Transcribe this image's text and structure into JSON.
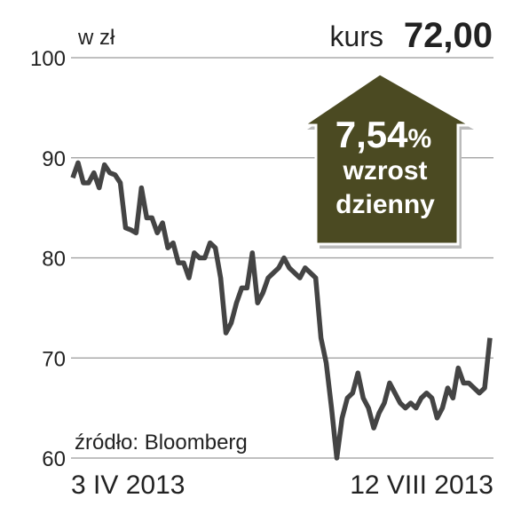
{
  "chart_data": {
    "type": "line",
    "unit_label": "w zł",
    "price_label": "kurs",
    "price_value": "72,00",
    "badge": {
      "value": "7,54",
      "unit": "%",
      "line1": "wzrost",
      "line2": "dzienny"
    },
    "source": "źródło: Bloomberg",
    "categories": [
      "3 IV 2013",
      null,
      null,
      null,
      null,
      null,
      null,
      null,
      null,
      null,
      null,
      null,
      null,
      null,
      null,
      null,
      null,
      null,
      null,
      null,
      null,
      null,
      null,
      null,
      null,
      null,
      null,
      null,
      null,
      null,
      null,
      null,
      null,
      null,
      null,
      null,
      null,
      null,
      null,
      null,
      null,
      null,
      null,
      null,
      null,
      null,
      null,
      null,
      null,
      null,
      null,
      null,
      null,
      null,
      null,
      null,
      null,
      null,
      null,
      null,
      null,
      null,
      null,
      null,
      null,
      null,
      null,
      null,
      null,
      null,
      null,
      null,
      null,
      null,
      null,
      null,
      null,
      null,
      null,
      "12 VIII 2013"
    ],
    "series": [
      {
        "name": "kurs",
        "color": "#444444",
        "values": [
          88,
          89.5,
          87.5,
          87.5,
          88.5,
          87,
          89.3,
          88.5,
          88.3,
          87.5,
          83,
          82.8,
          82.5,
          87,
          84,
          84,
          82.5,
          83.5,
          81,
          81.5,
          79.5,
          79.5,
          78,
          80.5,
          80,
          80,
          81.5,
          81,
          78,
          72.5,
          73.5,
          75.5,
          77,
          77,
          80.5,
          75.5,
          76.5,
          78,
          78.5,
          79,
          80,
          79,
          78.5,
          78,
          79,
          78.5,
          78,
          72,
          69.5,
          65,
          60,
          64,
          66,
          66.5,
          68.5,
          66,
          65,
          63,
          64.5,
          65.5,
          67.5,
          66.5,
          65.5,
          65,
          65.5,
          65,
          66,
          66.5,
          66,
          64,
          65,
          67,
          66,
          69,
          67.5,
          67.5,
          67,
          66.5,
          67,
          72
        ]
      }
    ],
    "ylim": [
      60,
      100
    ],
    "yticks": [
      60,
      70,
      80,
      90,
      100
    ],
    "grid": true
  }
}
